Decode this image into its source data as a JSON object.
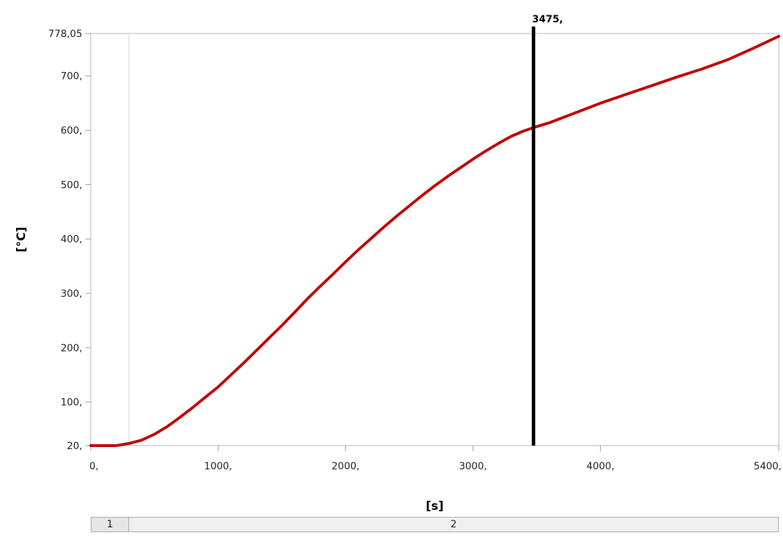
{
  "chart_data": {
    "type": "line",
    "xlabel": "[s]",
    "ylabel": "[°C]",
    "xlim": [
      0,
      5400
    ],
    "ylim": [
      20,
      778.05
    ],
    "x_ticks": [
      {
        "value": 0,
        "label": "0,"
      },
      {
        "value": 1000,
        "label": "1000,"
      },
      {
        "value": 2000,
        "label": "2000,"
      },
      {
        "value": 3000,
        "label": "3000,"
      },
      {
        "value": 4000,
        "label": "4000,"
      },
      {
        "value": 5400,
        "label": "5400,"
      }
    ],
    "y_ticks": [
      {
        "value": 20,
        "label": "20,"
      },
      {
        "value": 100,
        "label": "100,"
      },
      {
        "value": 200,
        "label": "200,"
      },
      {
        "value": 300,
        "label": "300,"
      },
      {
        "value": 400,
        "label": "400,"
      },
      {
        "value": 500,
        "label": "500,"
      },
      {
        "value": 600,
        "label": "600,"
      },
      {
        "value": 700,
        "label": "700,"
      },
      {
        "value": 778.05,
        "label": "778,05"
      }
    ],
    "series": [
      {
        "color": "#c00000",
        "x": [
          0,
          100,
          200,
          300,
          400,
          500,
          600,
          700,
          800,
          900,
          1000,
          1100,
          1200,
          1300,
          1400,
          1500,
          1600,
          1700,
          1800,
          1900,
          2000,
          2100,
          2200,
          2300,
          2400,
          2500,
          2600,
          2700,
          2800,
          2900,
          3000,
          3100,
          3200,
          3300,
          3400,
          3475,
          3600,
          3800,
          4000,
          4200,
          4400,
          4600,
          4800,
          5000,
          5200,
          5400
        ],
        "y": [
          20,
          20,
          20,
          24,
          30,
          41,
          55,
          72,
          90,
          109,
          128,
          150,
          172,
          195,
          218,
          241,
          265,
          290,
          313,
          335,
          358,
          380,
          401,
          422,
          442,
          461,
          480,
          498,
          515,
          531,
          547,
          562,
          576,
          589,
          599,
          605,
          614,
          632,
          650,
          666,
          682,
          698,
          713,
          730,
          751,
          773
        ]
      }
    ],
    "cursor": {
      "x": 3475,
      "label": "3475,"
    },
    "step_marker_x": 300,
    "steps": [
      "1",
      "2"
    ]
  }
}
